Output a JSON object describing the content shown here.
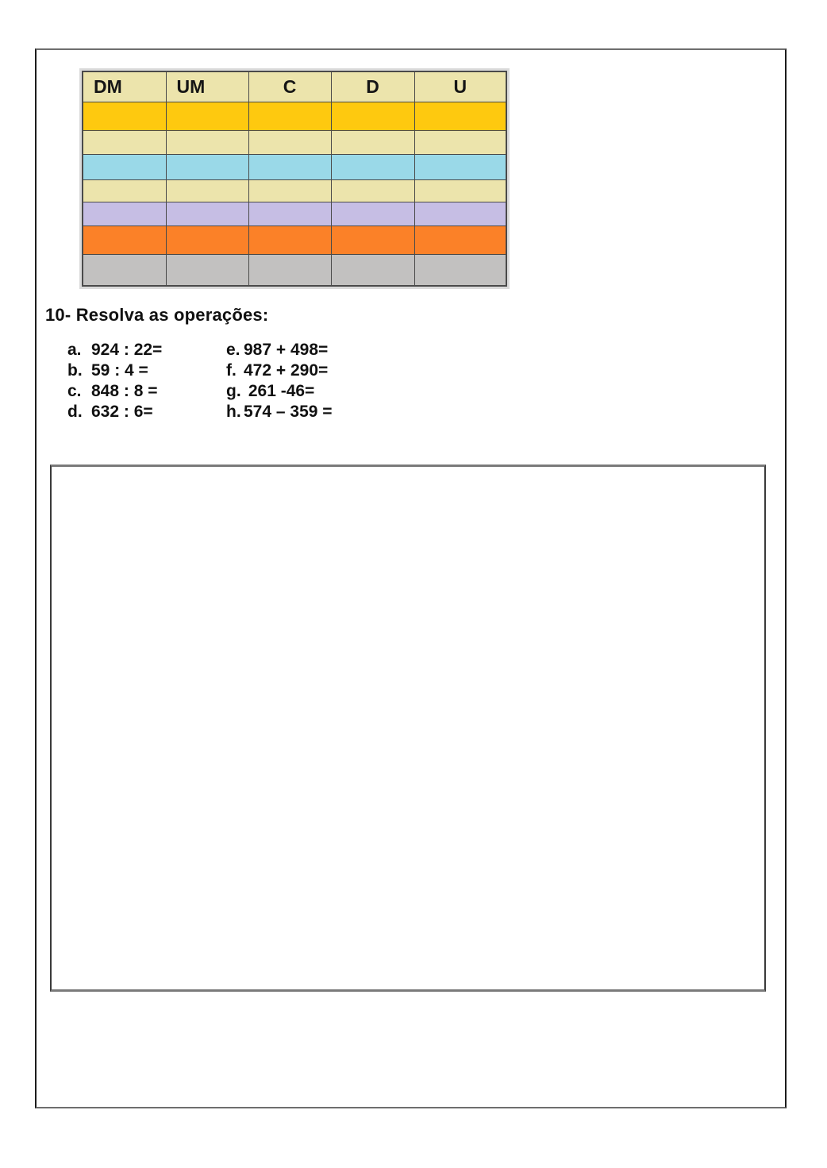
{
  "place_value_table": {
    "headers": [
      "DM",
      "UM",
      "C",
      "D",
      "U"
    ],
    "header_bg": "#ece4ac",
    "border_color": "#4a4a4a",
    "rows": [
      {
        "name": "yellow-row",
        "color": "#fec90f"
      },
      {
        "name": "tan-row",
        "color": "#ece4ac"
      },
      {
        "name": "light-blue-row",
        "color": "#9ad9e8"
      },
      {
        "name": "tan-row-2",
        "color": "#ece4ac"
      },
      {
        "name": "lavender-row",
        "color": "#c6bee4"
      },
      {
        "name": "orange-row",
        "color": "#fb8128"
      },
      {
        "name": "gray-row",
        "color": "#c2c1c0"
      }
    ]
  },
  "exercise": {
    "title": "10- Resolva as operações:",
    "column1": [
      {
        "label": "a.",
        "expression": "924 : 22="
      },
      {
        "label": "b.",
        "expression": "59 : 4 ="
      },
      {
        "label": "c.",
        "expression": "848 : 8 ="
      },
      {
        "label": "d.",
        "expression": "632 : 6="
      }
    ],
    "column2": [
      {
        "label": "e.",
        "expression": "987 + 498="
      },
      {
        "label": "f.",
        "expression": "472 + 290="
      },
      {
        "label": "g.",
        "expression": " 261 -46="
      },
      {
        "label": "h.",
        "expression": "574 – 359 ="
      }
    ]
  }
}
